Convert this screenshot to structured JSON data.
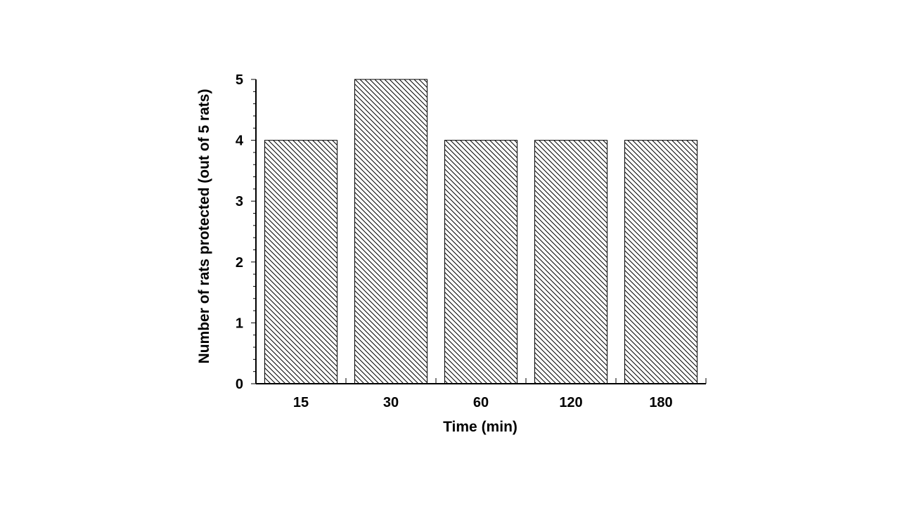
{
  "chart_data": {
    "type": "bar",
    "categories": [
      "15",
      "30",
      "60",
      "120",
      "180"
    ],
    "values": [
      4,
      5,
      4,
      4,
      4
    ],
    "xlabel": "Time (min)",
    "ylabel": "Number of rats protected (out of 5 rats)",
    "ylim": [
      0,
      5
    ],
    "yticks": [
      "0",
      "1",
      "2",
      "3",
      "4",
      "5"
    ],
    "y_minor_step": 0.2,
    "grid": false,
    "legend": "none",
    "bar_fill": "diagonal-hatch",
    "colors": {
      "bar_stroke": "#000000",
      "hatch": "#000000",
      "background": "#ffffff"
    }
  }
}
